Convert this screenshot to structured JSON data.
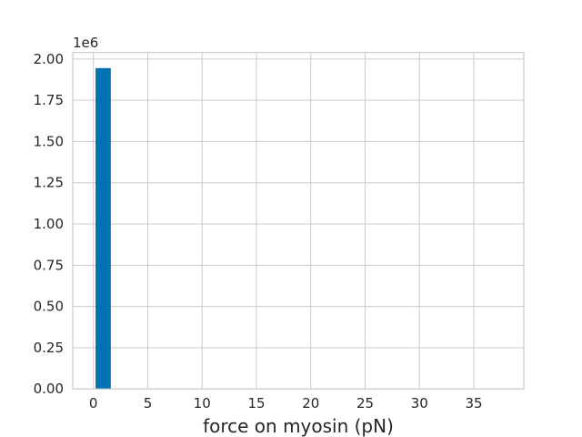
{
  "chart_data": {
    "type": "bar",
    "xlabel": "force on myosin (pN)",
    "ylabel": "",
    "y_offset_label": "1e6",
    "xlim": [
      -1.9,
      39.6
    ],
    "ylim": [
      0,
      2.04
    ],
    "x_ticks": [
      0,
      5,
      10,
      15,
      20,
      25,
      30,
      35
    ],
    "x_tick_labels": [
      "0",
      "5",
      "10",
      "15",
      "20",
      "25",
      "30",
      "35"
    ],
    "y_ticks": [
      0,
      0.25,
      0.5,
      0.75,
      1.0,
      1.25,
      1.5,
      1.75,
      2.0
    ],
    "y_tick_labels": [
      "0.00",
      "0.25",
      "0.50",
      "0.75",
      "1.00",
      "1.25",
      "1.50",
      "1.75",
      "2.00"
    ],
    "grid": true,
    "bar_color": "#0072b2",
    "bins": [
      {
        "x0": 0.2,
        "x1": 1.6,
        "value": 1.945
      }
    ]
  }
}
